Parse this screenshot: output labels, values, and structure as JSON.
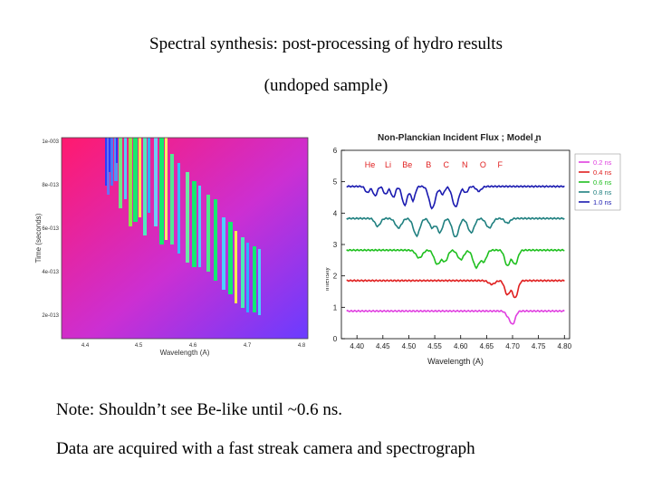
{
  "slide": {
    "title_line1": "Spectral synthesis: post-processing of hydro results",
    "title_line2": "(undoped sample)",
    "note1": "Note: Shouldn’t see Be-like until ~0.6 ns.",
    "note2": "Data are acquired with a fast streak camera and spectrograph"
  },
  "chart_data": [
    {
      "type": "heatmap",
      "title": "",
      "xlabel": "Wavelength (A)",
      "ylabel": "Time (seconds)",
      "x_ticks": [
        "4.4",
        "4.5",
        "4.6",
        "4.7",
        "4.8"
      ],
      "y_ticks": [
        "1e-003",
        "8e-013",
        "6e-013",
        "4e-013",
        "2e-013"
      ],
      "colors": {
        "low": "#ff1a6e",
        "mid": "#cc2fd2",
        "high": "#6a3cff",
        "line_hot": "#00ff66",
        "line_cool": "#00ffff"
      }
    },
    {
      "type": "line",
      "title": "Non-Planckian Incident Flux ; Model n",
      "title_subscript": "e",
      "xlabel": "Wavelength (A)",
      "ylabel": "Intensity",
      "x_ticks": [
        "4.40",
        "4.45",
        "4.50",
        "4.55",
        "4.60",
        "4.65",
        "4.70",
        "4.75",
        "4.80"
      ],
      "y_ticks": [
        "0",
        "1",
        "2",
        "3",
        "4",
        "5",
        "6"
      ],
      "xlim": [
        4.37,
        4.81
      ],
      "ylim": [
        0,
        6
      ],
      "ion_labels": [
        "He",
        "Li",
        "Be",
        "B",
        "C",
        "N",
        "O",
        "F"
      ],
      "ion_label_color": "#e02020",
      "legend_position": "right",
      "series": [
        {
          "name": "0.2 ns",
          "color": "#e040e0",
          "baseline": 0.88
        },
        {
          "name": "0.4 ns",
          "color": "#e02020",
          "baseline": 1.85
        },
        {
          "name": "0.6 ns",
          "color": "#20c020",
          "baseline": 2.82
        },
        {
          "name": "0.8 ns",
          "color": "#208080",
          "baseline": 3.83
        },
        {
          "name": "1.0 ns",
          "color": "#1a1ab0",
          "baseline": 4.85
        }
      ]
    }
  ]
}
